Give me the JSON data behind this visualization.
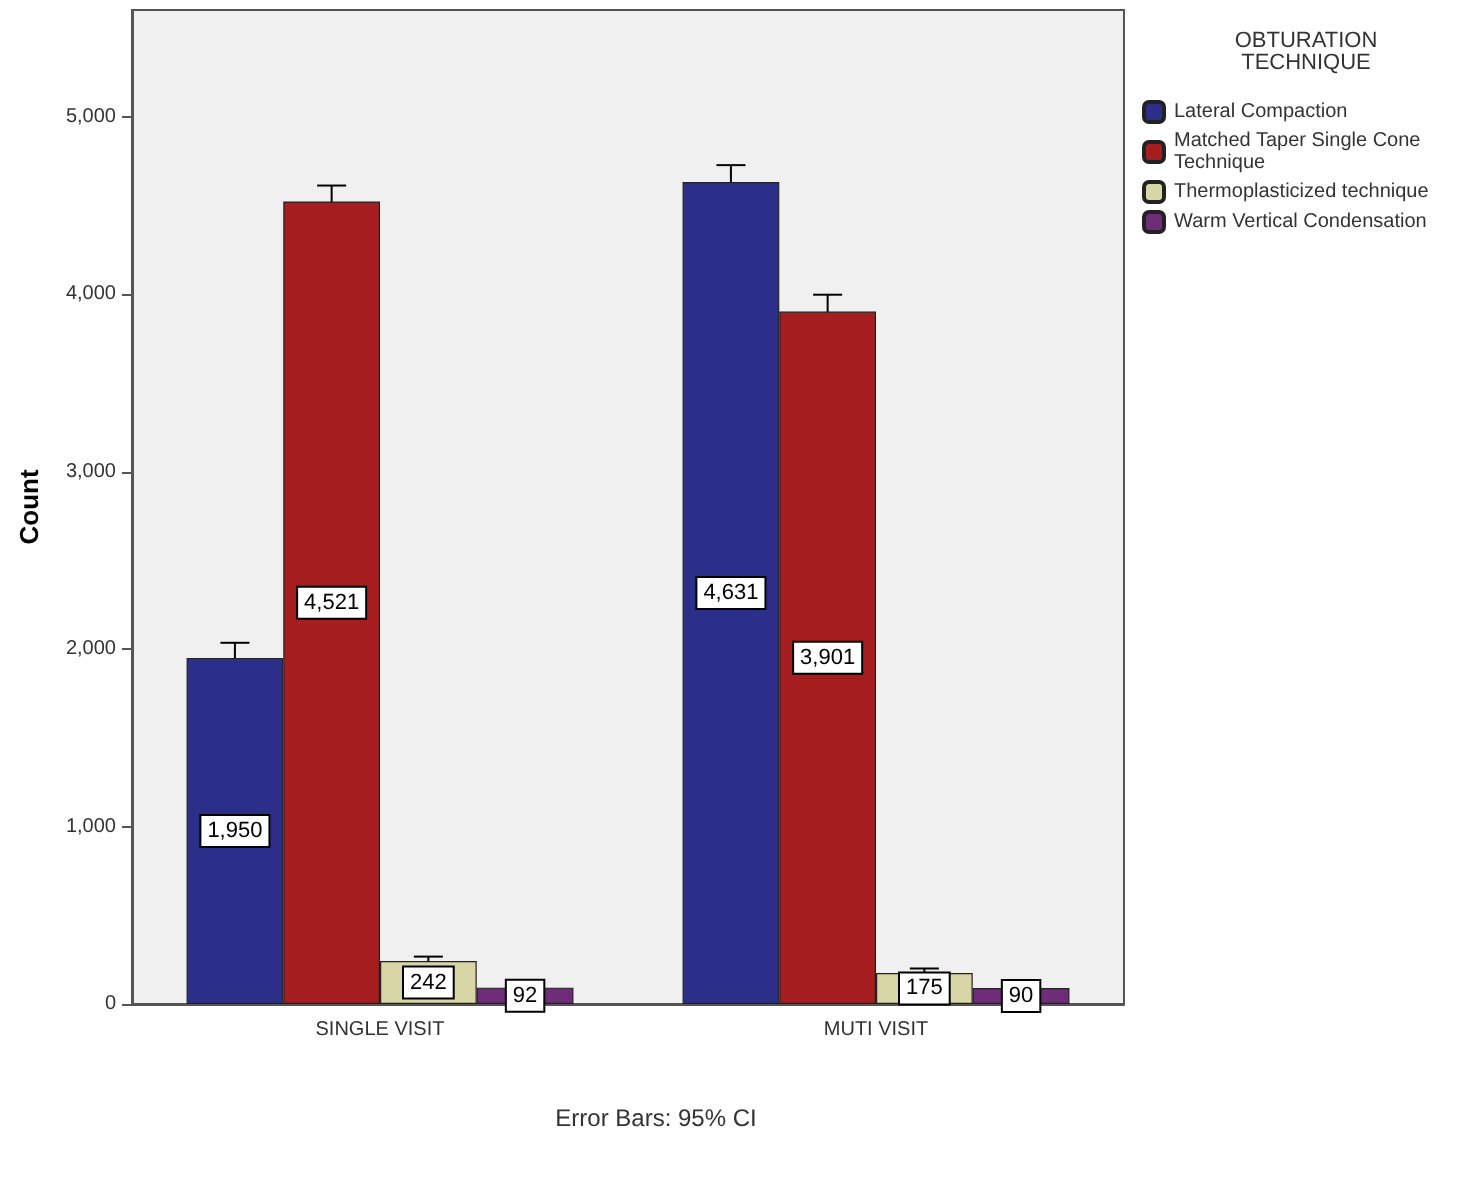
{
  "chart_data": {
    "type": "bar",
    "ylabel": "Count",
    "legend_title": "OBTURATION\nTECHNIQUE",
    "categories": [
      "SINGLE VISIT",
      "MUTI VISIT"
    ],
    "series": [
      {
        "name": "Lateral Compaction",
        "color": "#2b2f8a",
        "values": [
          1950,
          4631
        ],
        "value_labels": [
          "1,950",
          "4,631"
        ],
        "errors": [
          85,
          95
        ]
      },
      {
        "name": "Matched Taper Single Cone Technique",
        "color": "#a51d1f",
        "values": [
          4521,
          3901
        ],
        "value_labels": [
          "4,521",
          "3,901"
        ],
        "errors": [
          90,
          95
        ]
      },
      {
        "name": "Thermoplasticized technique",
        "color": "#d8d5a6",
        "values": [
          242,
          175
        ],
        "value_labels": [
          "242",
          "175"
        ],
        "errors": [
          25,
          25
        ]
      },
      {
        "name": "Warm Vertical Condensation",
        "color": "#6e2c79",
        "values": [
          92,
          90
        ],
        "value_labels": [
          "92",
          "90"
        ],
        "errors": [
          18,
          18
        ]
      }
    ],
    "ylim": [
      0,
      5600
    ],
    "yticks": [
      {
        "value": 0,
        "label": "0"
      },
      {
        "value": 1000,
        "label": "1,000"
      },
      {
        "value": 2000,
        "label": "2,000"
      },
      {
        "value": 3000,
        "label": "3,000"
      },
      {
        "value": 4000,
        "label": "4,000"
      },
      {
        "value": 5000,
        "label": "5,000"
      }
    ],
    "grid": false,
    "legend": "right",
    "annotations": [
      "Error Bars: 95% CI"
    ]
  }
}
